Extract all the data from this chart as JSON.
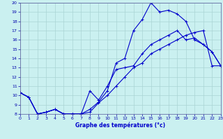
{
  "title": "Graphe des températures (°c)",
  "bg_color": "#caf0f0",
  "line_color": "#0000cc",
  "grid_color": "#aad4d4",
  "xlim": [
    0,
    23
  ],
  "ylim": [
    8,
    20
  ],
  "xticks": [
    0,
    1,
    2,
    3,
    4,
    5,
    6,
    7,
    8,
    9,
    10,
    11,
    12,
    13,
    14,
    15,
    16,
    17,
    18,
    19,
    20,
    21,
    22,
    23
  ],
  "yticks": [
    8,
    9,
    10,
    11,
    12,
    13,
    14,
    15,
    16,
    17,
    18,
    19,
    20
  ],
  "series": [
    {
      "x": [
        0,
        1,
        2,
        3,
        4,
        5,
        6,
        7,
        8,
        9,
        10,
        11,
        12,
        13,
        14,
        15,
        16,
        17,
        18,
        19,
        20,
        21,
        22,
        23
      ],
      "y": [
        10.3,
        9.8,
        8.0,
        8.2,
        8.5,
        8.0,
        8.0,
        8.0,
        8.5,
        9.3,
        10.5,
        13.5,
        14.0,
        17.0,
        18.2,
        20.0,
        19.0,
        19.2,
        18.8,
        18.0,
        16.0,
        15.5,
        14.7,
        13.2
      ]
    },
    {
      "x": [
        0,
        1,
        2,
        3,
        4,
        5,
        6,
        7,
        8,
        9,
        10,
        11,
        12,
        13,
        14,
        15,
        16,
        17,
        18,
        19,
        20,
        21,
        22,
        23
      ],
      "y": [
        10.3,
        9.8,
        8.0,
        8.2,
        8.5,
        8.0,
        8.0,
        8.0,
        10.5,
        9.5,
        11.0,
        12.8,
        13.0,
        13.2,
        14.5,
        15.5,
        16.0,
        16.5,
        17.0,
        16.0,
        16.2,
        15.5,
        14.7,
        13.2
      ]
    },
    {
      "x": [
        0,
        1,
        2,
        3,
        4,
        5,
        6,
        7,
        8,
        9,
        10,
        11,
        12,
        13,
        14,
        15,
        16,
        17,
        18,
        19,
        20,
        21,
        22,
        23
      ],
      "y": [
        10.3,
        9.8,
        8.0,
        8.2,
        8.5,
        8.0,
        8.0,
        8.0,
        8.2,
        9.2,
        10.0,
        11.0,
        12.0,
        13.0,
        13.5,
        14.5,
        15.0,
        15.5,
        16.0,
        16.5,
        16.8,
        17.0,
        13.2,
        13.2
      ]
    }
  ]
}
